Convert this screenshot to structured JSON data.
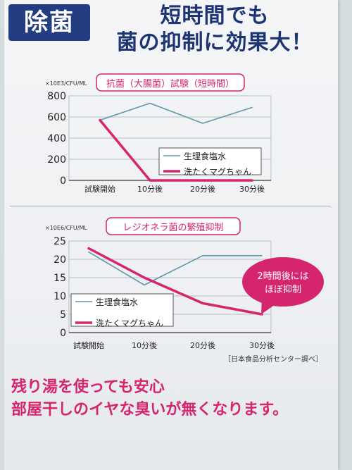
{
  "badge": "除菌",
  "headline": {
    "line1": "短時間でも",
    "line2": "菌の抑制に効果大！"
  },
  "chart_data": [
    {
      "type": "line",
      "title": "抗菌（大腸菌）試験（短時間）",
      "unit_label": "×10E3/CFU/ML",
      "categories": [
        "試験開始",
        "10分後",
        "20分後",
        "30分後"
      ],
      "ylim": [
        0,
        800
      ],
      "yticks": [
        0,
        200,
        400,
        600,
        800
      ],
      "legend_position": "bottom-right",
      "series": [
        {
          "name": "生理食塩水",
          "color": "#5d97a8",
          "values": [
            570,
            730,
            540,
            690
          ]
        },
        {
          "name": "洗たくマグちゃん",
          "color": "#d4256e",
          "values": [
            570,
            0,
            0,
            0
          ]
        }
      ]
    },
    {
      "type": "line",
      "title": "レジオネラ菌の繁殖抑制",
      "unit_label": "×10E6/CFU/ML",
      "categories": [
        "試験開始",
        "10分後",
        "20分後",
        "30分後"
      ],
      "ylim": [
        0,
        25
      ],
      "yticks": [
        0,
        5,
        10,
        15,
        20,
        25
      ],
      "legend_position": "bottom-left",
      "annotation": {
        "line1": "2時間後には",
        "line2": "ほぼ抑制"
      },
      "series": [
        {
          "name": "生理食塩水",
          "color": "#5d97a8",
          "values": [
            22,
            13,
            21,
            21
          ]
        },
        {
          "name": "洗たくマグちゃん",
          "color": "#d4256e",
          "values": [
            23,
            15,
            8,
            5
          ]
        }
      ]
    }
  ],
  "source_note": "［日本食品分析センター調べ］",
  "footer": {
    "line1": "残り湯を使っても安心",
    "line2": "部屋干しのイヤな臭いが無くなります。"
  }
}
